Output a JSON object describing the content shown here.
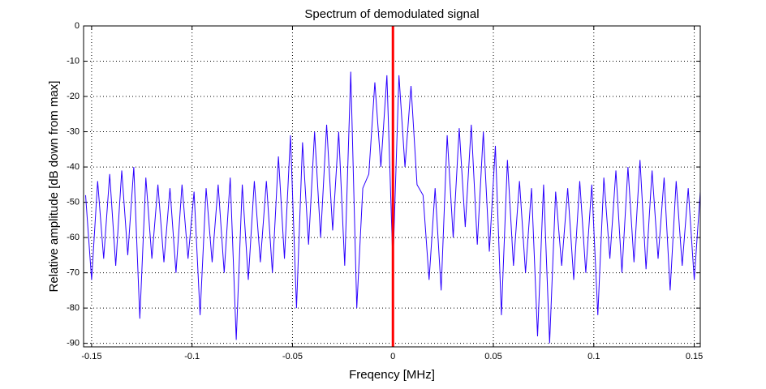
{
  "chart_data": {
    "type": "line",
    "title": "Spectrum of demodulated signal",
    "x_label": "Freqency [MHz]",
    "y_label": "Relative amplitude [dB down from max]",
    "xlim": [
      -0.154,
      0.153
    ],
    "ylim": [
      -91,
      0
    ],
    "xticks": [
      -0.15,
      -0.1,
      -0.05,
      0,
      0.05,
      0.1,
      0.15
    ],
    "yticks": [
      -90,
      -80,
      -70,
      -60,
      -50,
      -40,
      -30,
      -20,
      -10,
      0
    ],
    "grid": true,
    "vline": {
      "x": 0,
      "color": "#ff0000"
    },
    "series": [
      {
        "color": "#2b00ff",
        "x": [
          -0.153,
          -0.15,
          -0.147,
          -0.144,
          -0.141,
          -0.138,
          -0.135,
          -0.132,
          -0.129,
          -0.126,
          -0.123,
          -0.12,
          -0.117,
          -0.114,
          -0.111,
          -0.108,
          -0.105,
          -0.102,
          -0.099,
          -0.096,
          -0.093,
          -0.09,
          -0.087,
          -0.084,
          -0.081,
          -0.078,
          -0.075,
          -0.072,
          -0.069,
          -0.066,
          -0.063,
          -0.06,
          -0.057,
          -0.054,
          -0.051,
          -0.048,
          -0.045,
          -0.042,
          -0.039,
          -0.036,
          -0.033,
          -0.03,
          -0.027,
          -0.024,
          -0.021,
          -0.018,
          -0.015,
          -0.012,
          -0.009,
          -0.006,
          -0.003,
          0,
          0.003,
          0.006,
          0.009,
          0.012,
          0.015,
          0.018,
          0.021,
          0.024,
          0.027,
          0.03,
          0.033,
          0.036,
          0.039,
          0.042,
          0.045,
          0.048,
          0.051,
          0.054,
          0.057,
          0.06,
          0.063,
          0.066,
          0.069,
          0.072,
          0.075,
          0.078,
          0.081,
          0.084,
          0.087,
          0.09,
          0.093,
          0.096,
          0.099,
          0.102,
          0.105,
          0.108,
          0.111,
          0.114,
          0.117,
          0.12,
          0.123,
          0.126,
          0.129,
          0.132,
          0.135,
          0.138,
          0.141,
          0.144,
          0.147,
          0.15,
          0.153
        ],
        "values": [
          -48,
          -72,
          -44,
          -66,
          -42,
          -68,
          -41,
          -65,
          -40,
          -83,
          -43,
          -66,
          -45,
          -67,
          -46,
          -70,
          -45,
          -66,
          -47,
          -82,
          -46,
          -67,
          -45,
          -70,
          -43,
          -89,
          -45,
          -72,
          -44,
          -67,
          -44,
          -70,
          -37,
          -66,
          -31,
          -80,
          -33,
          -62,
          -30,
          -60,
          -28,
          -58,
          -30,
          -68,
          -13,
          -80,
          -46,
          -42,
          -16,
          -40,
          -14,
          -68,
          -14,
          -40,
          -17,
          -45,
          -48,
          -72,
          -46,
          -75,
          -31,
          -60,
          -29,
          -57,
          -28,
          -62,
          -30,
          -64,
          -34,
          -82,
          -38,
          -68,
          -44,
          -70,
          -46,
          -88,
          -45,
          -90,
          -47,
          -68,
          -46,
          -72,
          -44,
          -70,
          -45,
          -82,
          -43,
          -66,
          -41,
          -70,
          -40,
          -67,
          -38,
          -69,
          -41,
          -66,
          -43,
          -75,
          -44,
          -68,
          -46,
          -72,
          -47
        ]
      }
    ]
  }
}
